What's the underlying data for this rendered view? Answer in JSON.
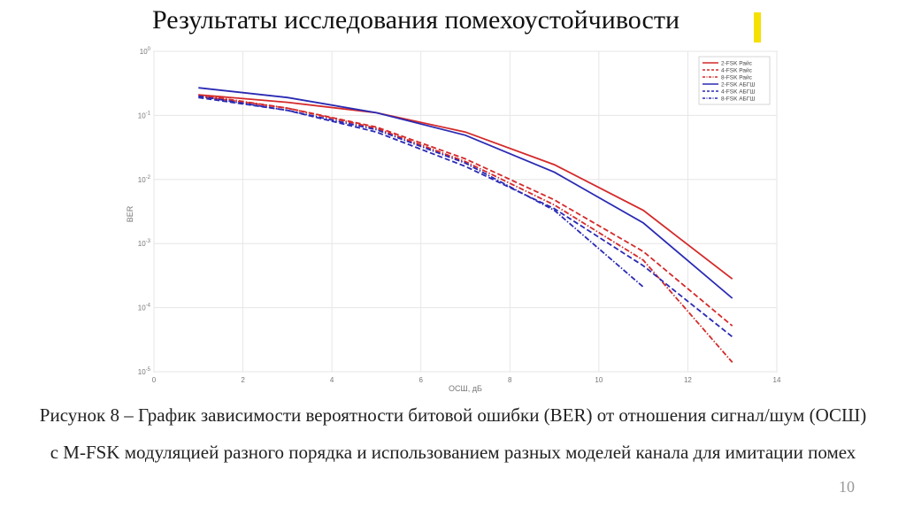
{
  "slide": {
    "title": "Результаты исследования помехоустойчивости",
    "caption": "Рисунок 8 – График зависимости вероятности битовой ошибки (BER) от отношения сигнал/шум (ОСШ) с M-FSK модуляцией разного порядка и использованием разных моделей канала для имитации помех",
    "page_number": "10",
    "highlight_color": "#f5e000"
  },
  "chart_data": {
    "type": "line",
    "xlabel": "ОСШ, дБ",
    "ylabel": "BER",
    "xlim": [
      0,
      14
    ],
    "ylim": [
      1e-05,
      1
    ],
    "yscale": "log",
    "grid": true,
    "legend_position": "top-right",
    "x_ticks": [
      "0",
      "2",
      "4",
      "6",
      "8",
      "10",
      "12",
      "14"
    ],
    "y_ticks": [
      {
        "base": "10",
        "exp": "0"
      },
      {
        "base": "10",
        "exp": "-1"
      },
      {
        "base": "10",
        "exp": "-2"
      },
      {
        "base": "10",
        "exp": "-3"
      },
      {
        "base": "10",
        "exp": "-4"
      },
      {
        "base": "10",
        "exp": "-5"
      }
    ],
    "series": [
      {
        "name": "2-FSK Райс",
        "color": "#d42a2a",
        "dash": "solid",
        "x": [
          1,
          3,
          5,
          7,
          9,
          11,
          13
        ],
        "y": [
          0.21,
          0.16,
          0.11,
          0.055,
          0.017,
          0.0033,
          0.00028
        ]
      },
      {
        "name": "4-FSK Райс",
        "color": "#d42a2a",
        "dash": "dashed",
        "x": [
          1,
          3,
          5,
          7,
          9,
          11,
          13
        ],
        "y": [
          0.2,
          0.13,
          0.066,
          0.021,
          0.0048,
          0.00075,
          5.2e-05
        ]
      },
      {
        "name": "8-FSK Райс",
        "color": "#d42a2a",
        "dash": "dashdot",
        "x": [
          1,
          3,
          5,
          7,
          9,
          11,
          13
        ],
        "y": [
          0.21,
          0.13,
          0.063,
          0.019,
          0.004,
          0.00055,
          1.4e-05
        ]
      },
      {
        "name": "2-FSK АБГШ",
        "color": "#2a2ab4",
        "dash": "solid",
        "x": [
          1,
          3,
          5,
          7,
          9,
          11,
          13
        ],
        "y": [
          0.27,
          0.19,
          0.11,
          0.049,
          0.013,
          0.0021,
          0.00014
        ]
      },
      {
        "name": "4-FSK АБГШ",
        "color": "#2a2ab4",
        "dash": "dashed",
        "x": [
          1,
          3,
          5,
          7,
          9,
          11,
          13
        ],
        "y": [
          0.19,
          0.12,
          0.055,
          0.016,
          0.0035,
          0.00045,
          3.5e-05
        ]
      },
      {
        "name": "8-FSK АБГШ",
        "color": "#2a2ab4",
        "dash": "dashdot",
        "x": [
          1,
          3,
          5,
          7,
          9,
          11
        ],
        "y": [
          0.2,
          0.12,
          0.06,
          0.018,
          0.0033,
          0.00021
        ]
      }
    ]
  }
}
